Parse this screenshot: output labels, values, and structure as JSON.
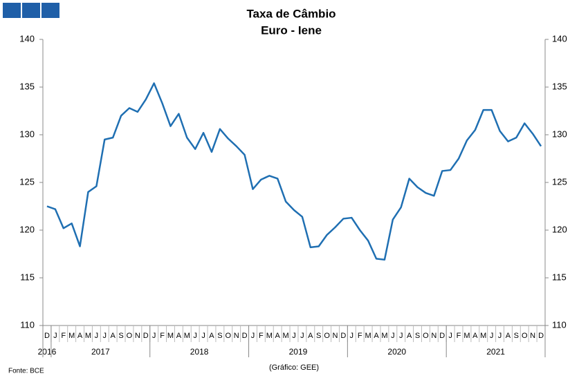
{
  "chart_data": {
    "type": "line",
    "title": "Taxa de Câmbio",
    "subtitle": "Euro - Iene",
    "source": "Fonte: BCE",
    "credit": "(Gráfico: GEE)",
    "categories": [
      "D",
      "J",
      "F",
      "M",
      "A",
      "M",
      "J",
      "J",
      "A",
      "S",
      "O",
      "N",
      "D",
      "J",
      "F",
      "M",
      "A",
      "M",
      "J",
      "J",
      "A",
      "S",
      "O",
      "N",
      "D",
      "J",
      "F",
      "M",
      "A",
      "M",
      "J",
      "J",
      "A",
      "S",
      "O",
      "N",
      "D",
      "J",
      "F",
      "M",
      "A",
      "M",
      "J",
      "J",
      "A",
      "S",
      "O",
      "N",
      "D",
      "J",
      "F",
      "M",
      "A",
      "M",
      "J",
      "J",
      "A",
      "S",
      "O",
      "N",
      "D"
    ],
    "year_groups": [
      {
        "label": "2016",
        "count": 1
      },
      {
        "label": "2017",
        "count": 12
      },
      {
        "label": "2018",
        "count": 12
      },
      {
        "label": "2019",
        "count": 12
      },
      {
        "label": "2020",
        "count": 12
      },
      {
        "label": "2021",
        "count": 12
      }
    ],
    "series": [
      {
        "name": "Euro - Iene",
        "color": "#1f6fb2",
        "values": [
          122.5,
          122.2,
          120.2,
          120.7,
          118.3,
          124.0,
          124.6,
          129.5,
          129.7,
          132.0,
          132.8,
          132.4,
          133.7,
          135.4,
          133.3,
          130.9,
          132.2,
          129.7,
          128.5,
          130.2,
          128.2,
          130.6,
          129.6,
          128.8,
          127.9,
          124.3,
          125.3,
          125.7,
          125.4,
          123.0,
          122.1,
          121.4,
          118.2,
          118.3,
          119.5,
          120.3,
          121.2,
          121.3,
          120.0,
          118.9,
          117.0,
          116.9,
          121.1,
          122.4,
          125.4,
          124.5,
          123.9,
          123.6,
          126.2,
          126.3,
          127.5,
          129.4,
          130.5,
          132.6,
          132.6,
          130.4,
          129.3,
          129.7,
          131.2,
          130.1,
          128.8
        ]
      }
    ],
    "ylim": [
      110,
      140
    ],
    "yticks": [
      110,
      115,
      120,
      125,
      130,
      135,
      140
    ],
    "y2lim": [
      110,
      140
    ],
    "y2ticks": [
      110,
      115,
      120,
      125,
      130,
      135,
      140
    ]
  }
}
